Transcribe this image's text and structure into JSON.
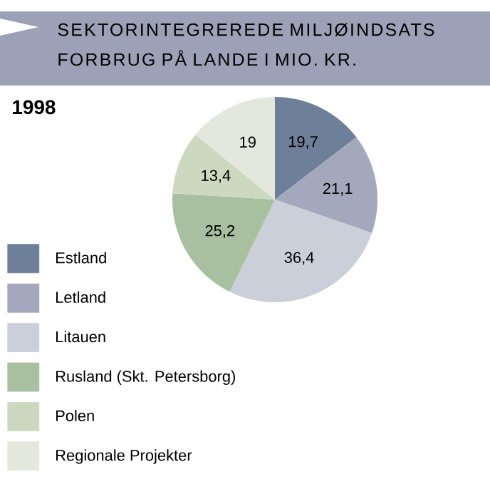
{
  "chart_data": {
    "type": "pie",
    "title": "SEKTORINTEGREREDE MILJØINDSATS FORBRUG PÅ LANDE I MIO. KR.",
    "subtitle": "1998",
    "categories": [
      "Estland",
      "Letland",
      "Litauen",
      "Rusland (Skt. Petersborg)",
      "Polen",
      "Regionale Projekter"
    ],
    "values": [
      19.7,
      21.1,
      36.4,
      25.2,
      13.4,
      19
    ],
    "value_labels": [
      "19,7",
      "21,1",
      "36,4",
      "25,2",
      "13,4",
      "19"
    ],
    "colors": [
      "#6e7f9a",
      "#a4a8bc",
      "#cbcfd9",
      "#a8bfa0",
      "#ccd8c0",
      "#e4e8dc"
    ],
    "legend": "bottom left"
  }
}
